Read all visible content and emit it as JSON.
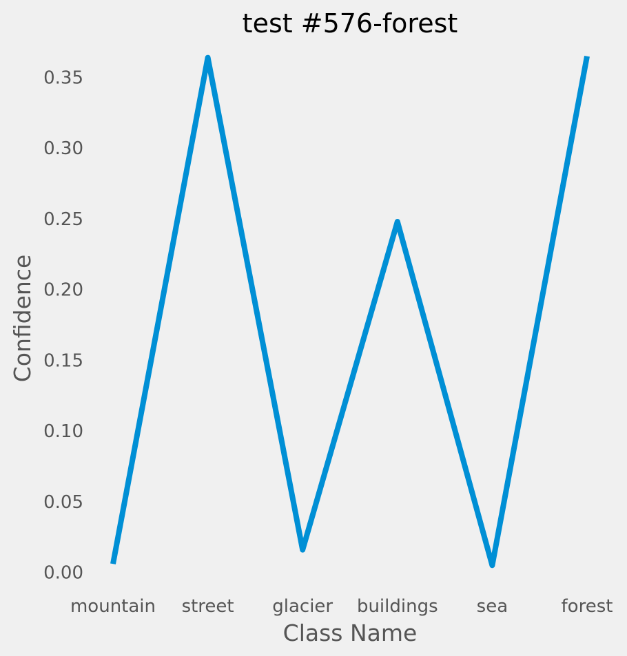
{
  "chart_data": {
    "type": "line",
    "title": "test #576-forest",
    "xlabel": "Class Name",
    "ylabel": "Confidence",
    "categories": [
      "mountain",
      "street",
      "glacier",
      "buildings",
      "sea",
      "forest"
    ],
    "series": [
      {
        "values": [
          0.006,
          0.364,
          0.016,
          0.248,
          0.005,
          0.365
        ]
      }
    ],
    "ylim": [
      -0.0085,
      0.3775
    ],
    "yticks": [
      0.0,
      0.05,
      0.1,
      0.15,
      0.2,
      0.25,
      0.3,
      0.35
    ],
    "ytick_labels": [
      "0.00",
      "0.05",
      "0.10",
      "0.15",
      "0.20",
      "0.25",
      "0.30",
      "0.35"
    ],
    "grid": false,
    "colors": {
      "background": "#f0f0f0",
      "line": "#008fd5",
      "text": "#555555",
      "title": "#000000"
    }
  }
}
